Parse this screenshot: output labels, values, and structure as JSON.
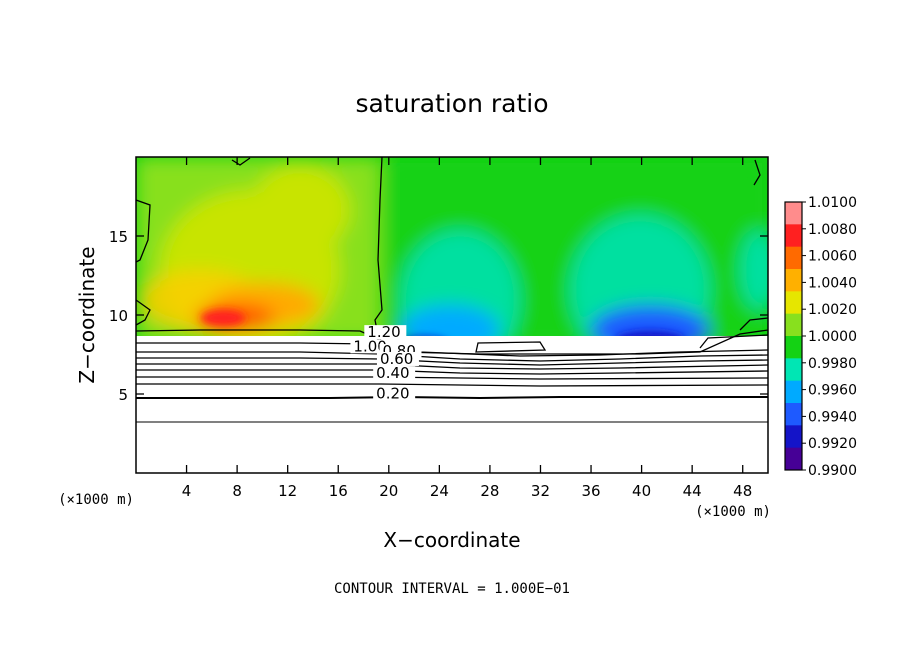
{
  "chart_data": {
    "type": "heatmap",
    "title": "saturation ratio",
    "xlabel": "X−coordinate",
    "ylabel": "Z−coordinate",
    "x_unit_left": "(×1000 m)",
    "x_unit_right": "(×1000 m)",
    "xlim": [
      0,
      50
    ],
    "ylim": [
      0,
      20
    ],
    "x_ticks": [
      4,
      8,
      12,
      16,
      20,
      24,
      28,
      32,
      36,
      40,
      44,
      48
    ],
    "y_ticks": [
      5,
      10,
      15
    ],
    "colorbar": {
      "labels": [
        "1.0100",
        "1.0080",
        "1.0060",
        "1.0040",
        "1.0020",
        "1.0000",
        "0.9980",
        "0.9960",
        "0.9940",
        "0.9920",
        "0.9900"
      ],
      "values": [
        1.01,
        1.008,
        1.006,
        1.004,
        1.002,
        1.0,
        0.998,
        0.996,
        0.994,
        0.992,
        0.99
      ],
      "colors": [
        "#ff8c8c",
        "#ff2020",
        "#ff6a00",
        "#ffb000",
        "#e6e600",
        "#88e01e",
        "#14d214",
        "#00e6b4",
        "#00aaff",
        "#1e5aff",
        "#1414c8",
        "#460096"
      ]
    },
    "contour_labels": [
      {
        "text": "1.20",
        "x": 18.3,
        "y": 8.6
      },
      {
        "text": "1.00",
        "x": 17.2,
        "y": 7.7
      },
      {
        "text": "0.80",
        "x": 19.5,
        "y": 7.4
      },
      {
        "text": "0.60",
        "x": 19.3,
        "y": 6.9
      },
      {
        "text": "0.40",
        "x": 19.0,
        "y": 6.0
      },
      {
        "text": "0.20",
        "x": 19.0,
        "y": 4.7
      }
    ],
    "contour_interval_text": "CONTOUR INTERVAL = 1.000E−01"
  }
}
